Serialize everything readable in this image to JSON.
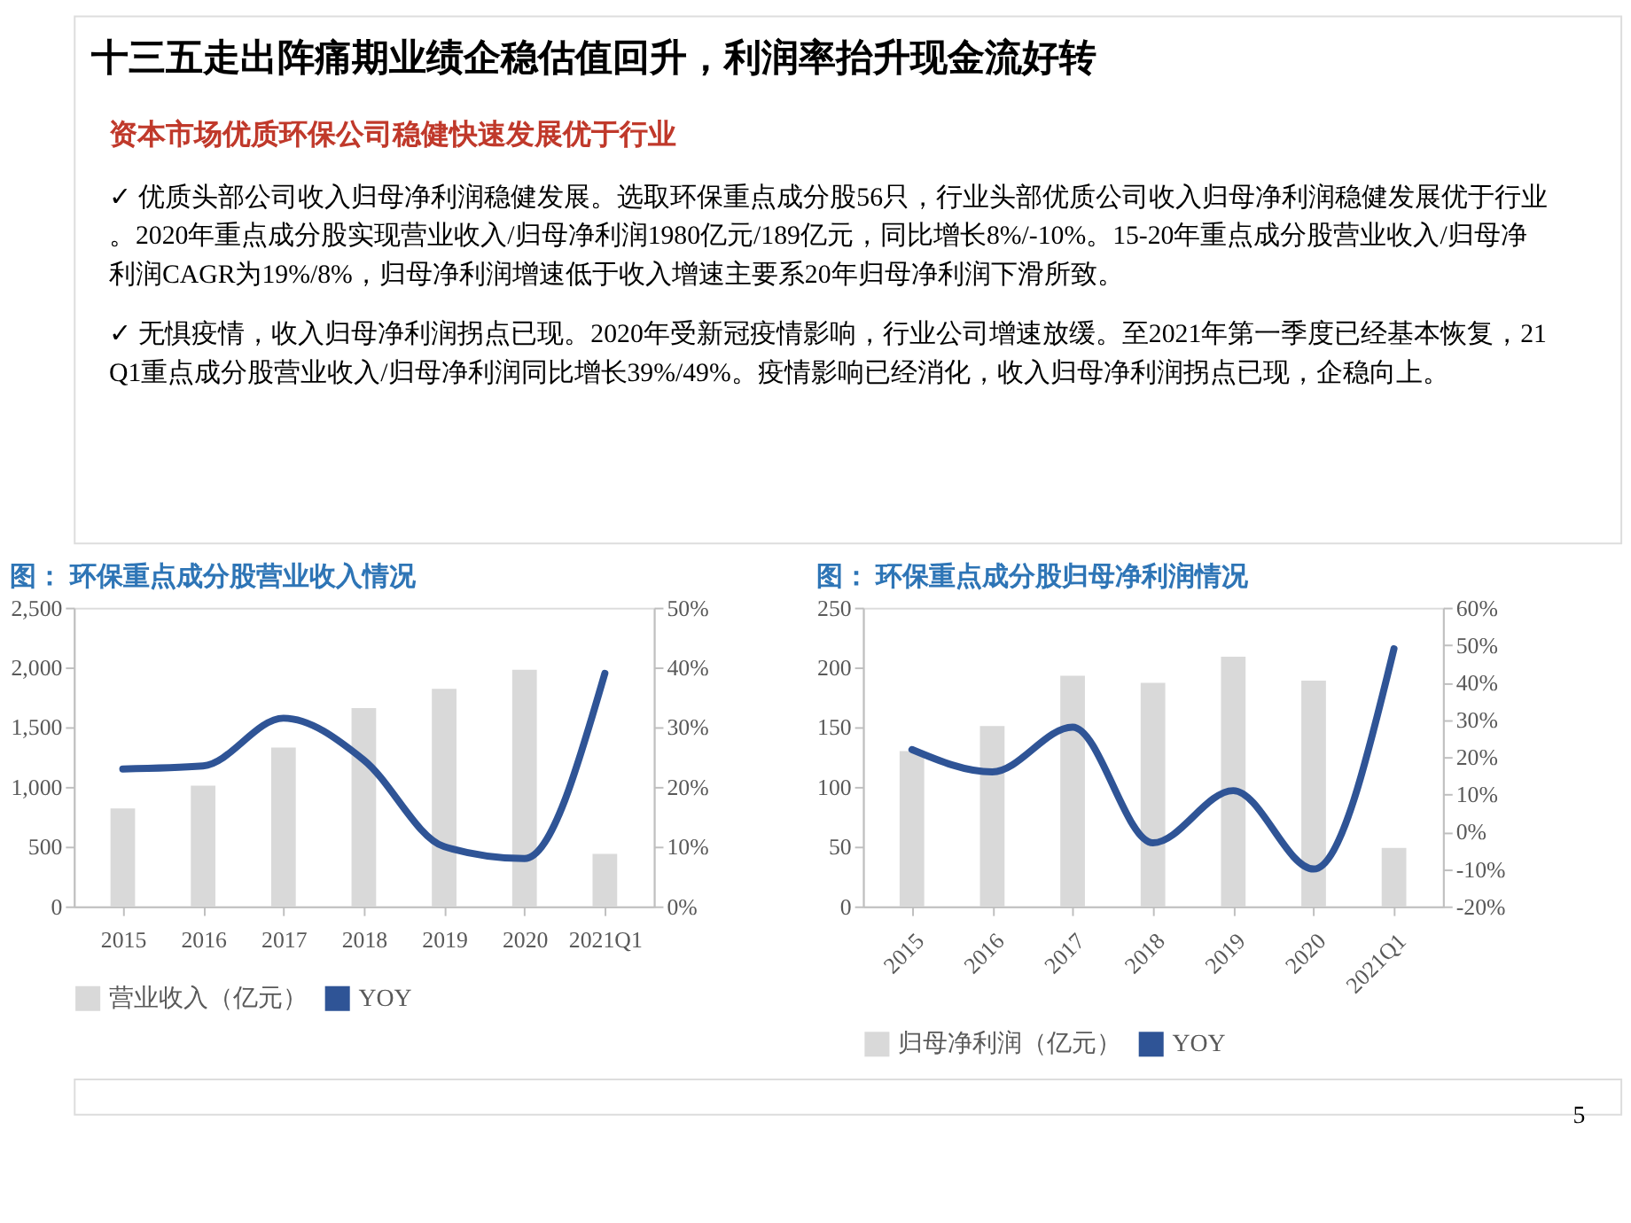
{
  "chart_data": [
    {
      "type": "other",
      "title": "十三五走出阵痛期业绩企稳估值回升，利润率抬升现金流好转",
      "subtitle": "资本市场优质环保公司稳健快速发展优于行业",
      "annotations": [
        "✓ 优质头部公司收入归母净利润稳健发展。选取环保重点成分股56只，行业头部优质公司收入归母净利润稳健发展优于行业。2020年重点成分股实现营业收入/归母净利润1980亿元/189亿元，同比增长8%/-10%。15-20年重点成分股营业收入/归母净利润CAGR为19%/8%，归母净利润增速低于收入增速主要系20年归母净利润下滑所致。",
        "✓ 无惧疫情，收入归母净利润拐点已现。2020年受新冠疫情影响，行业公司增速放缓。至2021年第一季度已经基本恢复，21Q1重点成分股营业收入/归母净利润同比增长39%/49%。疫情影响已经消化，收入归母净利润拐点已现，企稳向上。"
      ]
    },
    {
      "type": "bar",
      "title": "图： 环保重点成分股营业收入情况",
      "categories": [
        "2015",
        "2016",
        "2017",
        "2018",
        "2019",
        "2020",
        "2021Q1"
      ],
      "series": [
        {
          "name": "营业收入（亿元）",
          "color": "#d9d9d9",
          "values": [
            820,
            1010,
            1330,
            1660,
            1820,
            1980,
            440
          ]
        },
        {
          "name": "YOY",
          "type": "line",
          "axis": "y2",
          "color": "#2f5496",
          "values": [
            23,
            23.5,
            31.5,
            24.5,
            10,
            8,
            39
          ]
        }
      ],
      "ylim": [
        0,
        2500
      ],
      "yticks": [
        0,
        500,
        {
          "value": 1000,
          "label": "1,000"
        },
        {
          "value": 1500,
          "label": "1,500"
        },
        {
          "value": 2000,
          "label": "2,000"
        },
        {
          "value": 2500,
          "label": "2,500"
        }
      ],
      "y2lim": [
        0,
        50
      ],
      "y2ticks": [
        {
          "value": 0,
          "label": "0%"
        },
        {
          "value": 10,
          "label": "10%"
        },
        {
          "value": 20,
          "label": "20%"
        },
        {
          "value": 30,
          "label": "30%"
        },
        {
          "value": 40,
          "label": "40%"
        },
        {
          "value": 50,
          "label": "50%"
        }
      ],
      "legend": "bottom",
      "grid": false
    },
    {
      "type": "bar",
      "title": "图： 环保重点成分股归母净利润情况",
      "categories": [
        "2015",
        "2016",
        "2017",
        "2018",
        "2019",
        "2020",
        "2021Q1"
      ],
      "series": [
        {
          "name": "归母净利润（亿元）",
          "color": "#d9d9d9",
          "values": [
            130,
            151,
            193,
            187,
            209,
            189,
            49
          ]
        },
        {
          "name": "YOY",
          "type": "line",
          "axis": "y2",
          "color": "#2f5496",
          "values": [
            22,
            16,
            28,
            -3,
            11,
            -10,
            49
          ]
        }
      ],
      "ylim": [
        0,
        250
      ],
      "yticks": [
        0,
        50,
        100,
        150,
        200,
        250
      ],
      "y2lim": [
        -20,
        60
      ],
      "y2ticks": [
        {
          "value": -20,
          "label": "-20%"
        },
        {
          "value": -10,
          "label": "-10%"
        },
        {
          "value": 0,
          "label": "0%"
        },
        {
          "value": 10,
          "label": "10%"
        },
        {
          "value": 20,
          "label": "20%"
        },
        {
          "value": 30,
          "label": "30%"
        },
        {
          "value": 40,
          "label": "40%"
        },
        {
          "value": 50,
          "label": "50%"
        },
        {
          "value": 60,
          "label": "60%"
        }
      ],
      "legend": "bottom",
      "grid": false
    },
    {
      "type": "other",
      "annotations": [
        "5"
      ]
    }
  ]
}
